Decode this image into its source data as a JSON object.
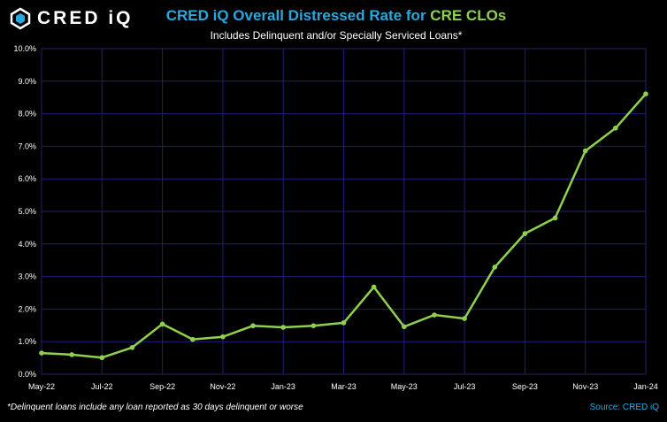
{
  "logo": {
    "text": "CRED iQ",
    "icon": "cred-iq-logo-icon"
  },
  "chart_data": {
    "type": "line",
    "title_part1": "CRED iQ Overall Distressed Rate for",
    "title_part2": "CRE CLOs",
    "subtitle": "Includes Delinquent and/or Specially Serviced Loans*",
    "xlabel": "",
    "ylabel": "",
    "ylim": [
      0,
      10
    ],
    "y_ticks": [
      0,
      1,
      2,
      3,
      4,
      5,
      6,
      7,
      8,
      9,
      10
    ],
    "y_tick_labels": [
      "0.0%",
      "1.0%",
      "2.0%",
      "3.0%",
      "4.0%",
      "5.0%",
      "6.0%",
      "7.0%",
      "8.0%",
      "9.0%",
      "10.0%"
    ],
    "x": [
      "May-22",
      "Jun-22",
      "Jul-22",
      "Aug-22",
      "Sep-22",
      "Oct-22",
      "Nov-22",
      "Dec-22",
      "Jan-23",
      "Feb-23",
      "Mar-23",
      "Apr-23",
      "May-23",
      "Jun-23",
      "Jul-23",
      "Aug-23",
      "Sep-23",
      "Oct-23",
      "Nov-23",
      "Dec-23",
      "Jan-24"
    ],
    "x_tick_labels": [
      "May-22",
      "Jul-22",
      "Sep-22",
      "Nov-22",
      "Jan-23",
      "Mar-23",
      "May-23",
      "Jul-23",
      "Sep-23",
      "Nov-23",
      "Jan-24"
    ],
    "series": [
      {
        "values": [
          0.65,
          0.6,
          0.51,
          0.82,
          1.54,
          1.07,
          1.15,
          1.49,
          1.44,
          1.49,
          1.58,
          2.68,
          1.46,
          1.82,
          1.71,
          3.29,
          4.32,
          4.8,
          6.86,
          7.56,
          8.61
        ],
        "color": "#8fd14f"
      }
    ],
    "grid": true,
    "grid_color": "#1f1f7a",
    "legend": "none"
  },
  "footnote": "*Delinquent loans include any loan reported as 30 days delinquent or worse",
  "source": "Source: CRED iQ"
}
